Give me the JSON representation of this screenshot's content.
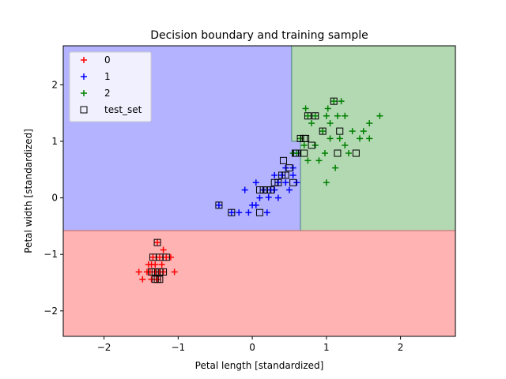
{
  "chart_data": {
    "type": "scatter",
    "title": "Decision boundary and training sample",
    "xlabel": "Petal length [standardized]",
    "ylabel": "Petal width [standardized]",
    "xlim": [
      -2.55,
      2.74
    ],
    "ylim": [
      -2.45,
      2.69
    ],
    "xticks": [
      -2,
      -1,
      0,
      1,
      2
    ],
    "yticks": [
      -2,
      -1,
      0,
      1,
      2
    ],
    "xtick_labels": [
      "−2",
      "−1",
      "0",
      "1",
      "2"
    ],
    "ytick_labels": [
      "−2",
      "−1",
      "0",
      "1",
      "2"
    ],
    "grid": false,
    "legend_position": "top-left",
    "regions": [
      {
        "class": "0",
        "color": "#ffb3b3",
        "x": [
          -2.55,
          2.74
        ],
        "y": [
          -2.45,
          -0.58
        ]
      },
      {
        "class": "1",
        "color": "#b3b3ff",
        "x": [
          -2.55,
          0.53
        ],
        "y": [
          -0.58,
          2.69
        ]
      },
      {
        "class": "1",
        "color": "#b3b3ff",
        "x": [
          0.53,
          0.65
        ],
        "y": [
          -0.58,
          1.0
        ]
      },
      {
        "class": "2",
        "color": "#b3d9b3",
        "x": [
          0.53,
          2.74
        ],
        "y": [
          1.0,
          2.69
        ]
      },
      {
        "class": "2",
        "color": "#b3d9b3",
        "x": [
          0.65,
          2.74
        ],
        "y": [
          -0.58,
          1.0
        ]
      }
    ],
    "series": [
      {
        "name": "0",
        "marker": "plus",
        "color": "#ff0000",
        "points": [
          [
            -1.53,
            -1.31
          ],
          [
            -1.48,
            -1.44
          ],
          [
            -1.42,
            -1.31
          ],
          [
            -1.36,
            -1.18
          ],
          [
            -1.36,
            -1.44
          ],
          [
            -1.34,
            -1.05
          ],
          [
            -1.31,
            -1.31
          ],
          [
            -1.31,
            -1.18
          ],
          [
            -1.28,
            -1.44
          ],
          [
            -1.25,
            -1.05
          ],
          [
            -1.25,
            -1.31
          ],
          [
            -1.22,
            -1.18
          ],
          [
            -1.2,
            -0.92
          ],
          [
            -1.2,
            -1.31
          ],
          [
            -1.16,
            -1.05
          ],
          [
            -1.1,
            -1.05
          ],
          [
            -1.05,
            -1.31
          ],
          [
            -1.28,
            -0.79
          ],
          [
            -1.38,
            -1.31
          ],
          [
            -1.4,
            -1.18
          ]
        ]
      },
      {
        "name": "1",
        "marker": "plus",
        "color": "#0000ff",
        "points": [
          [
            -0.45,
            -0.13
          ],
          [
            -0.28,
            -0.26
          ],
          [
            -0.18,
            -0.26
          ],
          [
            -0.1,
            0.14
          ],
          [
            -0.05,
            -0.26
          ],
          [
            0.0,
            -0.13
          ],
          [
            0.05,
            0.27
          ],
          [
            0.05,
            -0.13
          ],
          [
            0.1,
            0.0
          ],
          [
            0.15,
            0.14
          ],
          [
            0.2,
            -0.26
          ],
          [
            0.22,
            0.01
          ],
          [
            0.25,
            0.14
          ],
          [
            0.3,
            0.14
          ],
          [
            0.35,
            0.27
          ],
          [
            0.35,
            0.0
          ],
          [
            0.4,
            0.4
          ],
          [
            0.45,
            0.27
          ],
          [
            0.5,
            0.14
          ],
          [
            0.55,
            0.4
          ],
          [
            0.6,
            0.27
          ],
          [
            0.45,
            0.53
          ],
          [
            0.55,
            0.53
          ],
          [
            0.3,
            0.4
          ]
        ]
      },
      {
        "name": "2",
        "marker": "plus",
        "color": "#008000",
        "points": [
          [
            0.55,
            0.79
          ],
          [
            0.6,
            0.79
          ],
          [
            0.65,
            1.05
          ],
          [
            0.7,
            0.93
          ],
          [
            0.72,
            1.58
          ],
          [
            0.75,
            1.45
          ],
          [
            0.8,
            1.32
          ],
          [
            0.85,
            1.45
          ],
          [
            0.9,
            0.66
          ],
          [
            0.95,
            1.18
          ],
          [
            1.0,
            1.45
          ],
          [
            1.0,
            0.27
          ],
          [
            1.02,
            1.58
          ],
          [
            1.05,
            1.32
          ],
          [
            1.1,
            1.71
          ],
          [
            1.12,
            0.53
          ],
          [
            1.15,
            1.45
          ],
          [
            1.18,
            1.05
          ],
          [
            1.2,
            1.71
          ],
          [
            1.25,
            1.45
          ],
          [
            1.25,
            0.93
          ],
          [
            1.3,
            0.79
          ],
          [
            1.35,
            1.18
          ],
          [
            1.45,
            1.05
          ],
          [
            1.5,
            1.18
          ],
          [
            1.58,
            1.05
          ],
          [
            1.58,
            1.32
          ],
          [
            1.72,
            1.45
          ],
          [
            0.98,
            0.79
          ],
          [
            0.75,
            0.66
          ],
          [
            0.85,
            0.93
          ],
          [
            1.05,
            1.05
          ]
        ]
      }
    ],
    "test_set": {
      "name": "test_set",
      "marker": "square",
      "color": "#000000",
      "points": [
        [
          -1.34,
          -1.05
        ],
        [
          -1.31,
          -1.31
        ],
        [
          -1.28,
          -1.44
        ],
        [
          -1.25,
          -1.31
        ],
        [
          -1.2,
          -1.31
        ],
        [
          -1.25,
          -1.05
        ],
        [
          -1.16,
          -1.05
        ],
        [
          -1.28,
          -0.79
        ],
        [
          -1.31,
          -1.44
        ],
        [
          -1.25,
          -1.44
        ],
        [
          -1.36,
          -1.31
        ],
        [
          -0.45,
          -0.13
        ],
        [
          -0.28,
          -0.26
        ],
        [
          0.1,
          0.14
        ],
        [
          0.15,
          0.14
        ],
        [
          0.2,
          0.14
        ],
        [
          0.25,
          0.14
        ],
        [
          0.1,
          -0.26
        ],
        [
          0.3,
          0.27
        ],
        [
          0.35,
          0.27
        ],
        [
          0.4,
          0.4
        ],
        [
          0.45,
          0.4
        ],
        [
          0.5,
          0.53
        ],
        [
          0.55,
          0.27
        ],
        [
          0.42,
          0.66
        ],
        [
          0.6,
          0.79
        ],
        [
          0.65,
          1.05
        ],
        [
          0.72,
          1.05
        ],
        [
          0.75,
          1.45
        ],
        [
          0.8,
          0.93
        ],
        [
          0.85,
          1.45
        ],
        [
          0.95,
          1.18
        ],
        [
          1.1,
          1.71
        ],
        [
          1.15,
          0.79
        ],
        [
          1.18,
          1.18
        ],
        [
          1.4,
          0.79
        ],
        [
          0.7,
          1.05
        ],
        [
          0.58,
          0.79
        ],
        [
          0.7,
          0.79
        ]
      ]
    },
    "legend": [
      {
        "label": "0",
        "marker": "plus",
        "color": "#ff0000"
      },
      {
        "label": "1",
        "marker": "plus",
        "color": "#0000ff"
      },
      {
        "label": "2",
        "marker": "plus",
        "color": "#008000"
      },
      {
        "label": "test_set",
        "marker": "square",
        "color": "#000000"
      }
    ]
  }
}
